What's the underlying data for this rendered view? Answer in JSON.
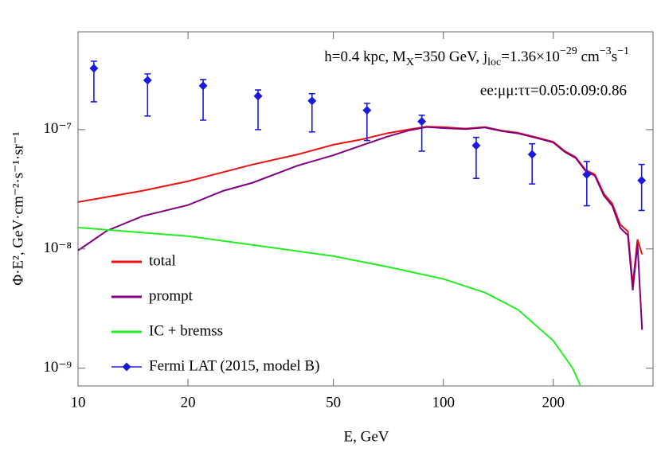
{
  "chart_data": {
    "type": "line",
    "xlabel": "E, GeV",
    "ylabel": "Φ·E², GeV·cm⁻²·s⁻¹·sr⁻¹",
    "annotations": [
      [
        "h=0.4 kpc, M",
        "X",
        "=350 GeV, j",
        "loc",
        "=1.36×10",
        "−29",
        " cm",
        "−3",
        "s",
        "−1"
      ],
      [
        "ee:μμ:ττ=0.05:0.09:0.86"
      ]
    ],
    "log_x": true,
    "log_y": true,
    "xlim": [
      10,
      375
    ],
    "ylim": [
      7.1e-10,
      6.6e-07
    ],
    "xticks": [
      10,
      20,
      50,
      100,
      200
    ],
    "yticks": [
      {
        "value": 1e-09,
        "label": "10⁻⁹"
      },
      {
        "value": 1e-08,
        "label": "10⁻⁸"
      },
      {
        "value": 1e-07,
        "label": "10⁻⁷"
      }
    ],
    "legend": "lower left",
    "series": [
      {
        "name": "total",
        "color": "#ee1111",
        "x": [
          10,
          15,
          20,
          30,
          40,
          50,
          60,
          70,
          80,
          90,
          100,
          115,
          130,
          145,
          160,
          180,
          200,
          215,
          230,
          245,
          260,
          275,
          290,
          305,
          320,
          330,
          340,
          350
        ],
        "values": [
          2.47e-08,
          3.07e-08,
          3.69e-08,
          5.09e-08,
          6.2e-08,
          7.47e-08,
          8.3e-08,
          9.3e-08,
          1e-07,
          1.06e-07,
          1.05e-07,
          1.02e-07,
          1.05e-07,
          9.8e-08,
          9.4e-08,
          8.6e-08,
          7.9e-08,
          6.6e-08,
          5.9e-08,
          4.6e-08,
          4.2e-08,
          2.9e-08,
          2.4e-08,
          1.6e-08,
          1.4e-08,
          5e-09,
          1.2e-08,
          9e-09
        ]
      },
      {
        "name": "prompt",
        "color": "#800080",
        "x": [
          10,
          12,
          15,
          20,
          25,
          30,
          40,
          50,
          60,
          70,
          80,
          90,
          100,
          115,
          130,
          145,
          160,
          180,
          200,
          215,
          230,
          245,
          260,
          275,
          290,
          305,
          320,
          330,
          340,
          350
        ],
        "values": [
          9.7e-09,
          1.42e-08,
          1.88e-08,
          2.33e-08,
          3.07e-08,
          3.58e-08,
          5e-08,
          6.1e-08,
          7.4e-08,
          8.7e-08,
          9.8e-08,
          1.05e-07,
          1.03e-07,
          1.01e-07,
          1.04e-07,
          9.7e-08,
          9.3e-08,
          8.5e-08,
          7.8e-08,
          6.5e-08,
          5.8e-08,
          4.5e-08,
          4.1e-08,
          2.8e-08,
          2.3e-08,
          1.5e-08,
          1.3e-08,
          4.5e-09,
          1.1e-08,
          2.1e-09
        ]
      },
      {
        "name": "IC + bremss",
        "color": "#22ee22",
        "x": [
          10,
          20,
          30,
          50,
          70,
          100,
          130,
          160,
          200,
          226,
          237
        ],
        "values": [
          1.51e-08,
          1.28e-08,
          1.08e-08,
          8.7e-09,
          7.1e-09,
          5.6e-09,
          4.3e-09,
          3.1e-09,
          1.7e-09,
          1e-09,
          7.2e-10
        ]
      },
      {
        "name": "Fermi LAT (2015, model B)",
        "color": "#1a1adf",
        "marker": "diamond",
        "x": [
          11.05,
          15.5,
          22.0,
          31.1,
          43.7,
          61.8,
          87.3,
          123,
          175,
          247,
          349
        ],
        "values": [
          3.26e-07,
          2.59e-07,
          2.33e-07,
          1.91e-07,
          1.74e-07,
          1.45e-07,
          1.17e-07,
          7.35e-08,
          6.2e-08,
          4.2e-08,
          3.75e-08
        ],
        "y_low": [
          1.71e-07,
          1.3e-07,
          1.2e-07,
          1e-07,
          9.55e-08,
          8.1e-08,
          6.6e-08,
          3.9e-08,
          3.5e-08,
          2.3e-08,
          2.1e-08
        ],
        "y_high": [
          3.74e-07,
          2.93e-07,
          2.63e-07,
          2.15e-07,
          2e-07,
          1.66e-07,
          1.32e-07,
          8.6e-08,
          7.6e-08,
          5.4e-08,
          5.1e-08
        ]
      }
    ]
  }
}
